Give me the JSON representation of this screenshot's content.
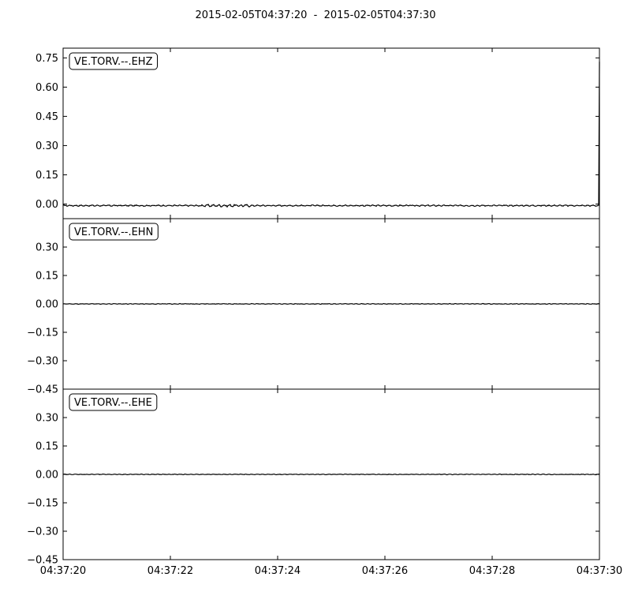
{
  "chart_data": {
    "type": "line",
    "title": "2015-02-05T04:37:20  -  2015-02-05T04:37:30",
    "x_ticks": [
      "04:37:20",
      "04:37:22",
      "04:37:24",
      "04:37:26",
      "04:37:28",
      "04:37:30"
    ],
    "xlim": [
      "04:37:20",
      "04:37:30"
    ],
    "grid": false,
    "panels": [
      {
        "name": "VE.TORV.--.EHZ",
        "ylim": [
          -0.075,
          0.8
        ],
        "y_ticks": [
          "0.00",
          "0.15",
          "0.30",
          "0.45",
          "0.60",
          "0.75"
        ],
        "y_tick_values": [
          0.0,
          0.15,
          0.3,
          0.45,
          0.6,
          0.75
        ],
        "baseline": -0.008,
        "noise_amplitude": 0.004,
        "spike_end_value": 0.73
      },
      {
        "name": "VE.TORV.--.EHN",
        "ylim": [
          -0.45,
          0.45
        ],
        "y_ticks": [
          "−0.45",
          "−0.30",
          "−0.15",
          "0.00",
          "0.15",
          "0.30"
        ],
        "y_tick_values": [
          -0.45,
          -0.3,
          -0.15,
          0.0,
          0.15,
          0.3
        ],
        "baseline": 0.0,
        "noise_amplitude": 0.002
      },
      {
        "name": "VE.TORV.--.EHE",
        "ylim": [
          -0.45,
          0.45
        ],
        "y_ticks": [
          "−0.45",
          "−0.30",
          "−0.15",
          "0.00",
          "0.15",
          "0.30"
        ],
        "y_tick_values": [
          -0.45,
          -0.3,
          -0.15,
          0.0,
          0.15,
          0.3
        ],
        "baseline": 0.0,
        "noise_amplitude": 0.002
      }
    ]
  }
}
